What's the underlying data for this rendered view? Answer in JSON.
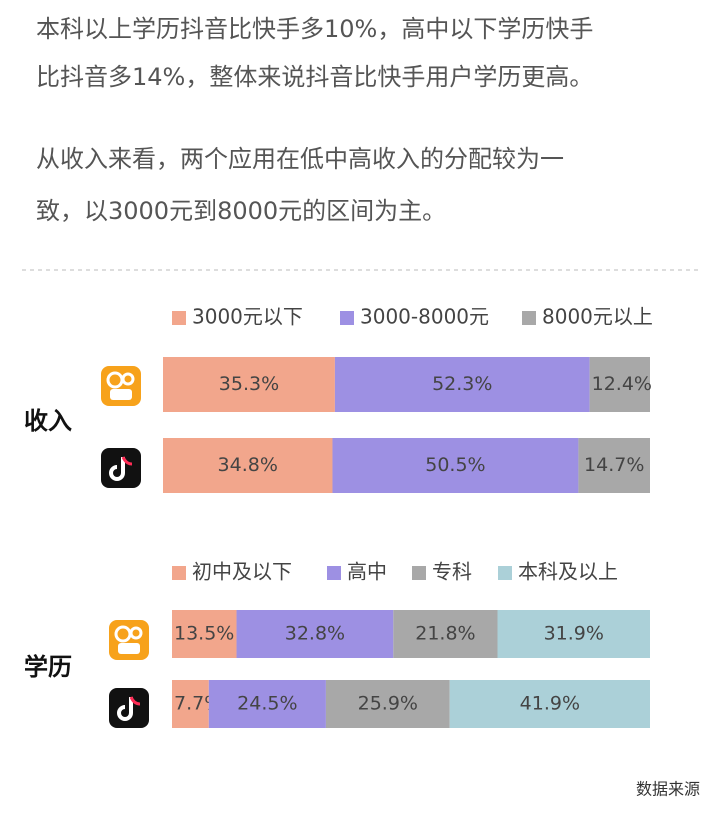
{
  "paragraphs": [
    [
      "本科以上学历抖音比快手多10%，高中以下学历快手",
      "比抖音多14%，整体来说抖音比快手用户学历更高。"
    ],
    [
      "从收入来看，两个应用在低中高收入的分配较为一",
      "致，以3000元到8000元的区间为主。"
    ]
  ],
  "chart_data": [
    {
      "type": "stacked-bar",
      "title": "收入",
      "categories": [
        null,
        null
      ],
      "series": [
        {
          "name": "3000元以下",
          "color": "#f2a68c",
          "values": [
            35.3,
            34.8
          ],
          "value_labels": [
            "35.3%",
            "34.8%"
          ]
        },
        {
          "name": "3000-8000元",
          "color": "#9d90e3",
          "values": [
            52.3,
            50.5
          ],
          "value_labels": [
            "52.3%",
            "50.5%"
          ]
        },
        {
          "name": "8000元以上",
          "color": "#a8a8a8",
          "values": [
            12.4,
            14.7
          ],
          "value_labels": [
            "12.4%",
            "14.7%"
          ]
        }
      ]
    },
    {
      "type": "stacked-bar",
      "title": "学历",
      "categories": [
        null,
        null
      ],
      "series": [
        {
          "name": "初中及以下",
          "color": "#f2a68c",
          "values": [
            13.5,
            7.7
          ],
          "value_labels": [
            "13.5%",
            "7.7%"
          ]
        },
        {
          "name": "高中",
          "color": "#9d90e3",
          "values": [
            32.8,
            24.5
          ],
          "value_labels": [
            "32.8%",
            "24.5%"
          ]
        },
        {
          "name": "专科",
          "color": "#a8a8a8",
          "values": [
            21.8,
            25.9
          ],
          "value_labels": [
            "21.8%",
            "25.9%"
          ]
        },
        {
          "name": "本科及以上",
          "color": "#abd0d8",
          "values": [
            31.9,
            41.9
          ],
          "value_labels": [
            "31.9%",
            "41.9%"
          ]
        }
      ]
    }
  ],
  "source": "数据来源"
}
